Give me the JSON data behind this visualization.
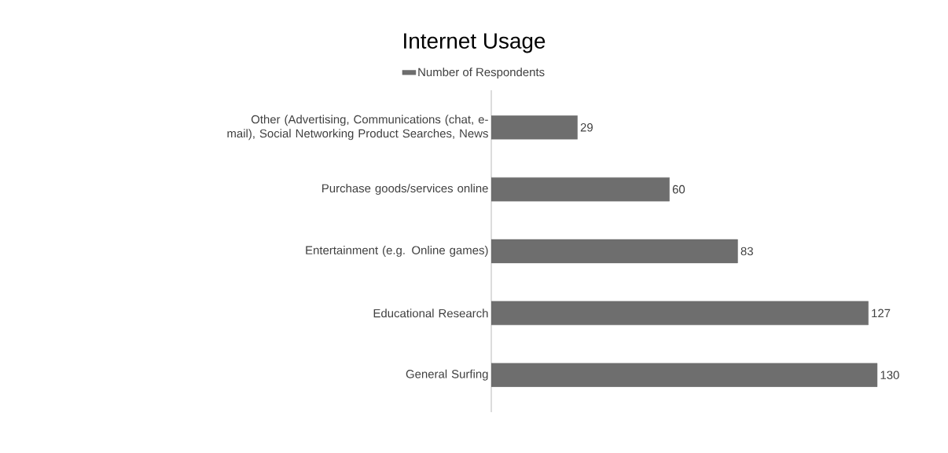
{
  "chart_data": {
    "type": "bar",
    "orientation": "horizontal",
    "title": "Internet Usage",
    "categories": [
      "Other (Advertising, Communications (chat, e-mail), Social Networking Product Searches, News",
      "Purchase goods/services online",
      "Entertainment (e.g. Online games)",
      "Educational Research",
      "General Surfing"
    ],
    "series": [
      {
        "name": "Number of Respondents",
        "color": "#6e6e6e",
        "values": [
          29,
          60,
          83,
          127,
          130
        ]
      }
    ],
    "data_labels": true,
    "legend": "top"
  }
}
